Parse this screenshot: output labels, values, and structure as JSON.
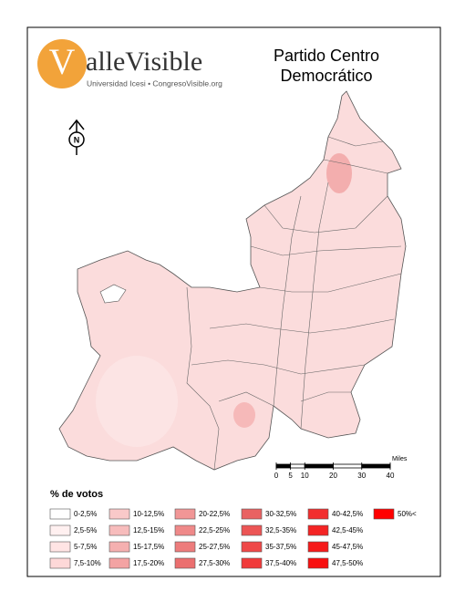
{
  "logo": {
    "initial": "V",
    "rest": "alleVisible",
    "tagline": "Universidad Icesi • CongresoVisible.org"
  },
  "title": [
    "Partido Centro",
    "Democrático"
  ],
  "north": "N",
  "scale": {
    "unit": "Miles",
    "ticks": [
      0,
      5,
      10,
      20,
      30,
      40
    ]
  },
  "legend": {
    "title": "% de votos",
    "items": [
      {
        "label": "0-2,5%",
        "color": "#ffffff"
      },
      {
        "label": "2,5-5%",
        "color": "#fff0f0"
      },
      {
        "label": "5-7,5%",
        "color": "#ffe4e4"
      },
      {
        "label": "7,5-10%",
        "color": "#fdd8d8"
      },
      {
        "label": "10-12,5%",
        "color": "#f9c9c9"
      },
      {
        "label": "12,5-15%",
        "color": "#f7bcbc"
      },
      {
        "label": "15-17,5%",
        "color": "#f5b0b0"
      },
      {
        "label": "17,5-20%",
        "color": "#f3a3a3"
      },
      {
        "label": "20-22,5%",
        "color": "#f19696"
      },
      {
        "label": "22,5-25%",
        "color": "#ef8989"
      },
      {
        "label": "25-27,5%",
        "color": "#ed7c7c"
      },
      {
        "label": "27,5-30%",
        "color": "#eb6f6f"
      },
      {
        "label": "30-32,5%",
        "color": "#e96262"
      },
      {
        "label": "32,5-35%",
        "color": "#ec5555"
      },
      {
        "label": "35-37,5%",
        "color": "#ef4848"
      },
      {
        "label": "37,5-40%",
        "color": "#f03a3a"
      },
      {
        "label": "40-42,5%",
        "color": "#f22e2e"
      },
      {
        "label": "42,5-45%",
        "color": "#f42424"
      },
      {
        "label": "45-47,5%",
        "color": "#f61a1a"
      },
      {
        "label": "47,5-50%",
        "color": "#f80f0f"
      },
      {
        "label": "50%<",
        "color": "#ff0000"
      }
    ]
  }
}
